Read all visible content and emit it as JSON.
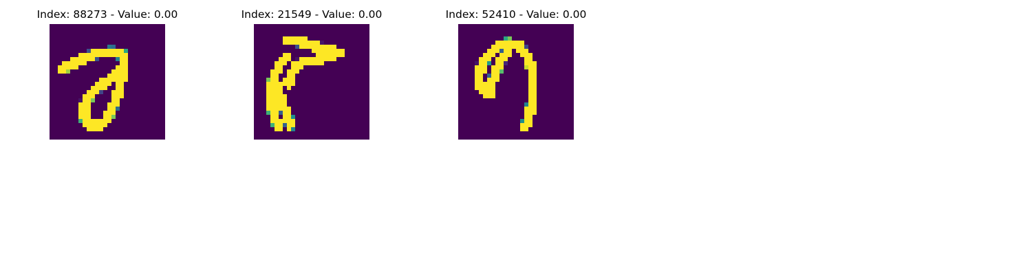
{
  "colors": {
    "background": "#440154",
    "stroke_mid": "#21918c",
    "stroke_full": "#fde725"
  },
  "panels": [
    {
      "title": "Index: 88273 - Value: 0.00",
      "glyph": "digit-seven-loop"
    },
    {
      "title": "Index: 21549 - Value: 0.00",
      "glyph": "arrow-hook"
    },
    {
      "title": "Index: 52410 - Value: 0.00",
      "glyph": "inverted-j-hook"
    }
  ]
}
